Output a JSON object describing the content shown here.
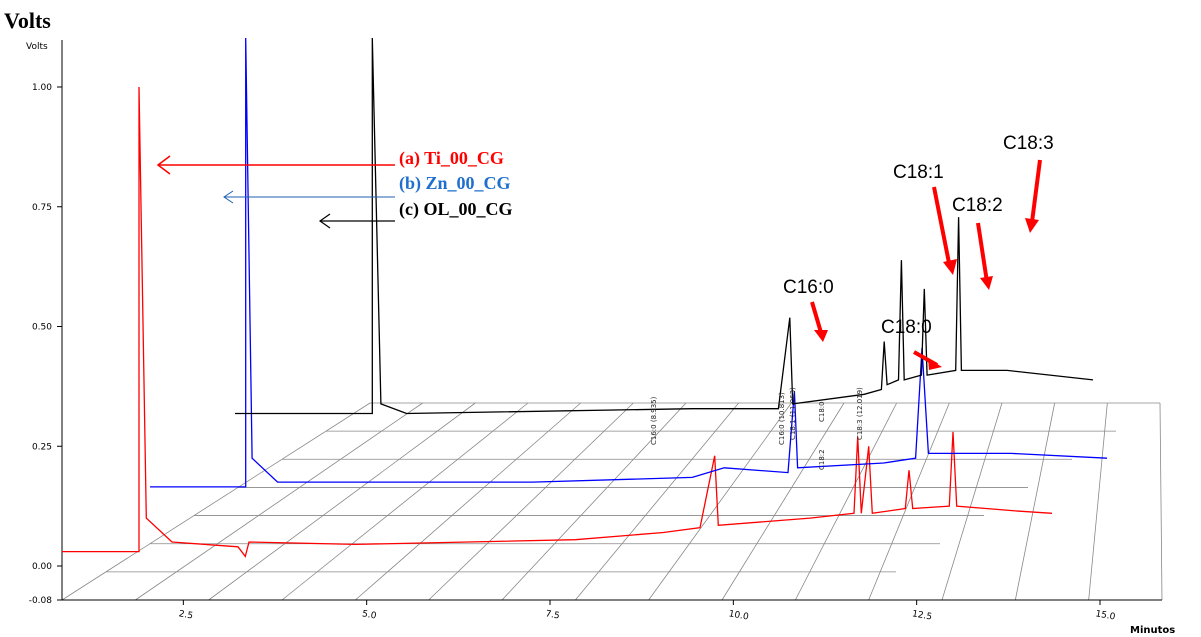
{
  "chart_data": {
    "type": "line",
    "title": "Volts",
    "ylabel": "Volts",
    "xlabel": "Minutos",
    "ylim": [
      -0.08,
      1.0
    ],
    "xlim": [
      0,
      15.0
    ],
    "y_ticks": [
      "1.00",
      "0.75",
      "0.50",
      "0.25",
      "0.00",
      "-0.08"
    ],
    "x_ticks": [
      "2.5",
      "5.0",
      "7.5",
      "10.0",
      "12.5",
      "15.0"
    ],
    "series": [
      {
        "name": "(a) Ti_00_CG",
        "color": "#ff0000",
        "points": [
          [
            0,
            0.03
          ],
          [
            1.05,
            0.03
          ],
          [
            1.05,
            1.0
          ],
          [
            1.15,
            0.1
          ],
          [
            1.5,
            0.05
          ],
          [
            2.4,
            0.04
          ],
          [
            2.5,
            0.02
          ],
          [
            2.55,
            0.05
          ],
          [
            4,
            0.045
          ],
          [
            7,
            0.055
          ],
          [
            8.2,
            0.07
          ],
          [
            8.7,
            0.08
          ],
          [
            8.9,
            0.23
          ],
          [
            8.95,
            0.085
          ],
          [
            10.2,
            0.1
          ],
          [
            10.8,
            0.11
          ],
          [
            10.85,
            0.27
          ],
          [
            10.9,
            0.11
          ],
          [
            11.0,
            0.25
          ],
          [
            11.05,
            0.11
          ],
          [
            11.5,
            0.12
          ],
          [
            11.55,
            0.2
          ],
          [
            11.6,
            0.12
          ],
          [
            12.1,
            0.125
          ],
          [
            12.15,
            0.28
          ],
          [
            12.2,
            0.125
          ],
          [
            13.0,
            0.115
          ],
          [
            13.5,
            0.11
          ]
        ]
      },
      {
        "name": "(b) Zn_00_CG",
        "color": "#0000ff",
        "points": [
          [
            0,
            0.14
          ],
          [
            1.5,
            0.14
          ],
          [
            1.5,
            1.1
          ],
          [
            1.6,
            0.2
          ],
          [
            2.0,
            0.15
          ],
          [
            6,
            0.15
          ],
          [
            8.5,
            0.16
          ],
          [
            9.0,
            0.18
          ],
          [
            10.0,
            0.17
          ],
          [
            10.1,
            0.34
          ],
          [
            10.15,
            0.18
          ],
          [
            11.5,
            0.19
          ],
          [
            12.0,
            0.2
          ],
          [
            12.1,
            0.43
          ],
          [
            12.2,
            0.21
          ],
          [
            13.5,
            0.21
          ],
          [
            15.0,
            0.2
          ]
        ]
      },
      {
        "name": "(c) OL_00_CG",
        "color": "#000000",
        "points": [
          [
            0,
            0.26
          ],
          [
            2.4,
            0.26
          ],
          [
            2.4,
            1.1
          ],
          [
            2.55,
            0.28
          ],
          [
            3.0,
            0.26
          ],
          [
            8,
            0.27
          ],
          [
            9.5,
            0.27
          ],
          [
            9.7,
            0.46
          ],
          [
            9.75,
            0.28
          ],
          [
            11.0,
            0.3
          ],
          [
            11.3,
            0.31
          ],
          [
            11.35,
            0.41
          ],
          [
            11.4,
            0.32
          ],
          [
            11.6,
            0.33
          ],
          [
            11.65,
            0.58
          ],
          [
            11.7,
            0.33
          ],
          [
            12.0,
            0.34
          ],
          [
            12.05,
            0.52
          ],
          [
            12.1,
            0.34
          ],
          [
            12.6,
            0.35
          ],
          [
            12.65,
            0.67
          ],
          [
            12.7,
            0.35
          ],
          [
            13.5,
            0.35
          ],
          [
            15.0,
            0.33
          ]
        ]
      }
    ],
    "peak_labels": [
      "C16:0",
      "C18:0",
      "C18:1",
      "C18:2",
      "C18:3"
    ],
    "mini_labels": [
      "C16:0 (8.935)",
      "C16:0 (10.813)",
      "C18:1 (11.063)",
      "C18:0",
      "C18:2",
      "C18:3 (12.019)"
    ],
    "grid": true,
    "legend_position": "top-center"
  }
}
